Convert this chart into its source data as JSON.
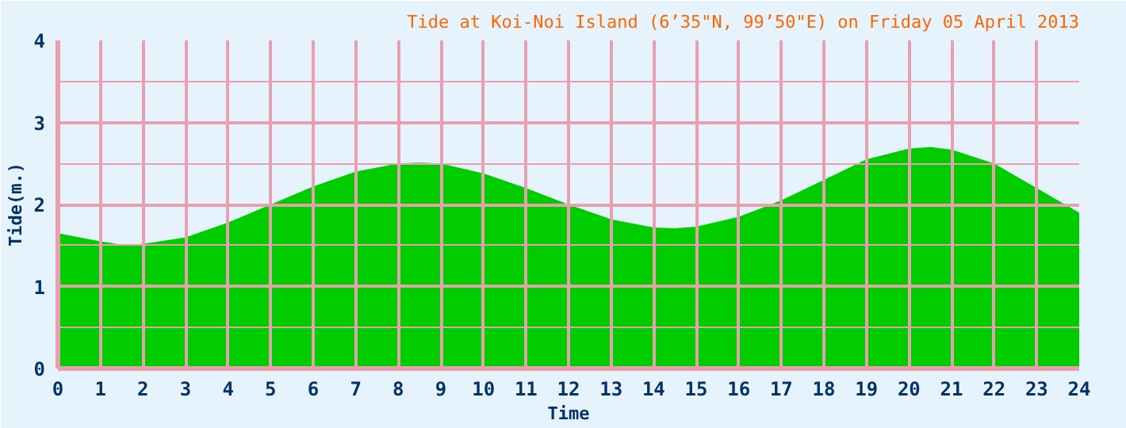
{
  "chart_data": {
    "type": "area",
    "title": "Tide at Koi-Noi Island (6’35\"N, 99’50\"E) on Friday 05 April 2013",
    "xlabel": "Time",
    "ylabel": "Tide(m.)",
    "x": [
      0,
      1,
      1.5,
      2,
      3,
      4,
      5,
      6,
      7,
      8,
      8.5,
      9,
      10,
      11,
      12,
      13,
      14,
      14.5,
      15,
      16,
      17,
      18,
      19,
      20,
      20.5,
      21,
      22,
      23,
      24
    ],
    "series": [
      {
        "color": "#00cc00",
        "values": [
          1.65,
          1.55,
          1.51,
          1.52,
          1.6,
          1.78,
          2.0,
          2.22,
          2.4,
          2.5,
          2.51,
          2.5,
          2.38,
          2.2,
          2.0,
          1.82,
          1.72,
          1.71,
          1.73,
          1.85,
          2.05,
          2.3,
          2.55,
          2.68,
          2.7,
          2.67,
          2.5,
          2.2,
          1.9
        ]
      }
    ],
    "xlim": [
      0,
      24
    ],
    "ylim": [
      0,
      4
    ],
    "xticks": [
      0,
      1,
      2,
      3,
      4,
      5,
      6,
      7,
      8,
      9,
      10,
      11,
      12,
      13,
      14,
      15,
      16,
      17,
      18,
      19,
      20,
      21,
      22,
      23,
      24
    ],
    "yticks": [
      0,
      {
        "value": 0.5,
        "label": null
      },
      1,
      {
        "value": 1.5,
        "label": null
      },
      2,
      {
        "value": 2.5,
        "label": null
      },
      3,
      {
        "value": 3.5,
        "label": null
      },
      4
    ],
    "grid": true
  }
}
